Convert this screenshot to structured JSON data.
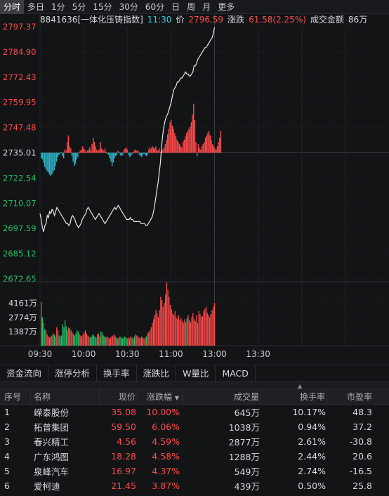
{
  "period_tabs": [
    "分时",
    "多日",
    "1分",
    "5分",
    "15分",
    "30分",
    "60分",
    "日",
    "周",
    "月",
    "更多"
  ],
  "active_period": 0,
  "info": {
    "code_name": "8841636[一体化压铸指数]",
    "time": "11:30",
    "price_label": "价",
    "price": "2796.59",
    "change_label": "涨跌",
    "change": "61.58(2.25%)",
    "amount_label": "成交金额",
    "amount": "86万"
  },
  "colors": {
    "up": "#ff4a4a",
    "down": "#21c064",
    "line": "#e8e8e8",
    "neutral": "#d6d8dc",
    "cyan": "#2fd1e0"
  },
  "chart_data": {
    "type": "line",
    "price_axis": {
      "base": 2735.01,
      "range": [
        2672.65,
        2797.37
      ],
      "ticks": [
        "2797.37",
        "2784.90",
        "2772.43",
        "2759.95",
        "2747.48",
        "2735.01",
        "2722.54",
        "2710.07",
        "2697.59",
        "2685.12",
        "2672.65"
      ]
    },
    "volume_axis": {
      "range": [
        0,
        6000
      ],
      "ticks": [
        "4161万",
        "2774万",
        "1387万"
      ],
      "tick_values": [
        4161,
        2774,
        1387
      ]
    },
    "time_axis": [
      "09:30",
      "10:00",
      "10:30",
      "11:00",
      "13:00",
      "13:30"
    ],
    "session_minutes": 240,
    "price_series": [
      2705,
      2702,
      2698,
      2696,
      2699,
      2700,
      2704,
      2703,
      2706,
      2705,
      2707,
      2706,
      2704,
      2706,
      2708,
      2707,
      2706,
      2705,
      2704,
      2703,
      2702,
      2701,
      2700,
      2700,
      2699,
      2700,
      2703,
      2704,
      2703,
      2702,
      2700,
      2699,
      2698,
      2699,
      2700,
      2702,
      2703,
      2704,
      2705,
      2707,
      2708,
      2707,
      2706,
      2705,
      2704,
      2703,
      2702,
      2703,
      2704,
      2705,
      2704,
      2703,
      2702,
      2701,
      2700,
      2701,
      2702,
      2703,
      2704,
      2705,
      2706,
      2707,
      2708,
      2707,
      2708,
      2709,
      2708,
      2707,
      2706,
      2705,
      2704,
      2703,
      2702,
      2702,
      2702,
      2703,
      2702,
      2702,
      2701,
      2701,
      2701,
      2701,
      2701,
      2701,
      2700,
      2700,
      2700,
      2700,
      2699,
      2699,
      2700,
      2701,
      2702,
      2703,
      2705,
      2708,
      2712,
      2716,
      2720,
      2725,
      2730,
      2738,
      2744,
      2748,
      2751,
      2753,
      2754,
      2756,
      2758,
      2760,
      2763,
      2766,
      2767,
      2768,
      2770,
      2770,
      2771,
      2772,
      2772,
      2773,
      2774,
      2775,
      2774,
      2774,
      2773,
      2773,
      2774,
      2775,
      2778,
      2778,
      2779,
      2781,
      2782,
      2783,
      2784,
      2785,
      2786,
      2787,
      2787,
      2788,
      2789,
      2790,
      2791,
      2792,
      2794,
      2797
    ],
    "ratio_bars": [
      -5,
      -6,
      -9,
      -13,
      -15,
      -17,
      -18,
      -20,
      -21,
      -20,
      -18,
      -16,
      -12,
      -8,
      -4,
      -2,
      -1,
      1,
      -3,
      -5,
      3,
      2,
      10,
      16,
      6,
      4,
      -3,
      -8,
      -12,
      -10,
      -6,
      -4,
      1,
      2,
      3,
      6,
      4,
      3,
      1,
      2,
      3,
      5,
      2,
      8,
      14,
      10,
      6,
      3,
      2,
      3,
      10,
      4,
      3,
      2,
      4,
      1,
      -1,
      -2,
      -5,
      -8,
      -12,
      -9,
      -5,
      -3,
      -2,
      2,
      1,
      -2,
      -3,
      -2,
      3,
      4,
      5,
      3,
      -2,
      -4,
      -3,
      -1,
      1,
      2,
      3,
      2,
      2,
      -2,
      -3,
      -4,
      -2,
      -1,
      -2,
      -3,
      -2,
      3,
      5,
      4,
      6,
      5,
      4,
      6,
      3,
      2,
      4,
      1,
      2,
      3,
      5,
      8,
      12,
      17,
      22,
      28,
      30,
      25,
      22,
      18,
      15,
      12,
      10,
      8,
      6,
      5,
      10,
      12,
      15,
      18,
      20,
      22,
      24,
      28,
      35,
      45,
      30,
      10,
      -3,
      8,
      4,
      3,
      6,
      8,
      10,
      14,
      16,
      18,
      20,
      16,
      12,
      8,
      6,
      4,
      3,
      6,
      10,
      14,
      20
    ],
    "volume_bars": [
      4300,
      2800,
      2200,
      1600,
      1500,
      1100,
      900,
      800,
      900,
      1000,
      1200,
      1100,
      900,
      1800,
      1500,
      1000,
      900,
      1000,
      2100,
      1800,
      2500,
      1900,
      1500,
      1800,
      1700,
      1500,
      1300,
      1100,
      1000,
      1200,
      1500,
      1400,
      1100,
      1000,
      900,
      1100,
      1300,
      1500,
      1200,
      1000,
      900,
      800,
      900,
      1100,
      1000,
      900,
      800,
      1100,
      1200,
      900,
      1400,
      1300,
      1000,
      900,
      800,
      900,
      800,
      700,
      800,
      900,
      1000,
      1100,
      900,
      800,
      700,
      800,
      900,
      800,
      700,
      800,
      900,
      800,
      700,
      800,
      700,
      900,
      800,
      700,
      900,
      1100,
      1000,
      900,
      800,
      700,
      900,
      800,
      700,
      800,
      900,
      1200,
      1300,
      1500,
      1800,
      2200,
      2600,
      3000,
      3500,
      3200,
      2800,
      3500,
      4800,
      4500,
      3800,
      4200,
      5000,
      6200,
      5500,
      4800,
      4000,
      3600,
      3200,
      3000,
      3400,
      2800,
      2600,
      3000,
      2500,
      2700,
      2400,
      2200,
      2600,
      2300,
      2700,
      3000,
      2500,
      2300,
      2800,
      3200,
      2600,
      2400,
      3000,
      2200,
      3400,
      3100,
      2800,
      2900,
      3400,
      3600,
      3800,
      3200,
      3000,
      2800,
      3100,
      3500,
      3800,
      4200
    ]
  },
  "sub_tabs": [
    "资金流向",
    "涨停分析",
    "换手率",
    "涨跌比",
    "W量比",
    "MACD"
  ],
  "table": {
    "headers": {
      "idx": "序号",
      "name": "名称",
      "price": "现价",
      "change_pct": "涨跌幅",
      "volume": "成交量",
      "turnover": "换手率",
      "pe": "市盈率"
    },
    "sort_arrow": "▼",
    "splitter_arrow": "▲",
    "rows": [
      {
        "idx": "1",
        "name": "嵘泰股份",
        "price": "35.08",
        "change_pct": "10.00%",
        "volume": "645万",
        "turnover": "10.17%",
        "pe": "48.3"
      },
      {
        "idx": "2",
        "name": "拓普集团",
        "price": "59.50",
        "change_pct": "6.06%",
        "volume": "1038万",
        "turnover": "0.94%",
        "pe": "37.2"
      },
      {
        "idx": "3",
        "name": "春兴精工",
        "price": "4.56",
        "change_pct": "4.59%",
        "volume": "2877万",
        "turnover": "2.61%",
        "pe": "-30.8"
      },
      {
        "idx": "4",
        "name": "广东鸿图",
        "price": "18.28",
        "change_pct": "4.58%",
        "volume": "1288万",
        "turnover": "2.44%",
        "pe": "20.6"
      },
      {
        "idx": "5",
        "name": "泉峰汽车",
        "price": "16.97",
        "change_pct": "4.37%",
        "volume": "549万",
        "turnover": "2.74%",
        "pe": "-16.5"
      },
      {
        "idx": "6",
        "name": "爱柯迪",
        "price": "21.45",
        "change_pct": "3.87%",
        "volume": "439万",
        "turnover": "0.50%",
        "pe": "25.8"
      }
    ]
  }
}
